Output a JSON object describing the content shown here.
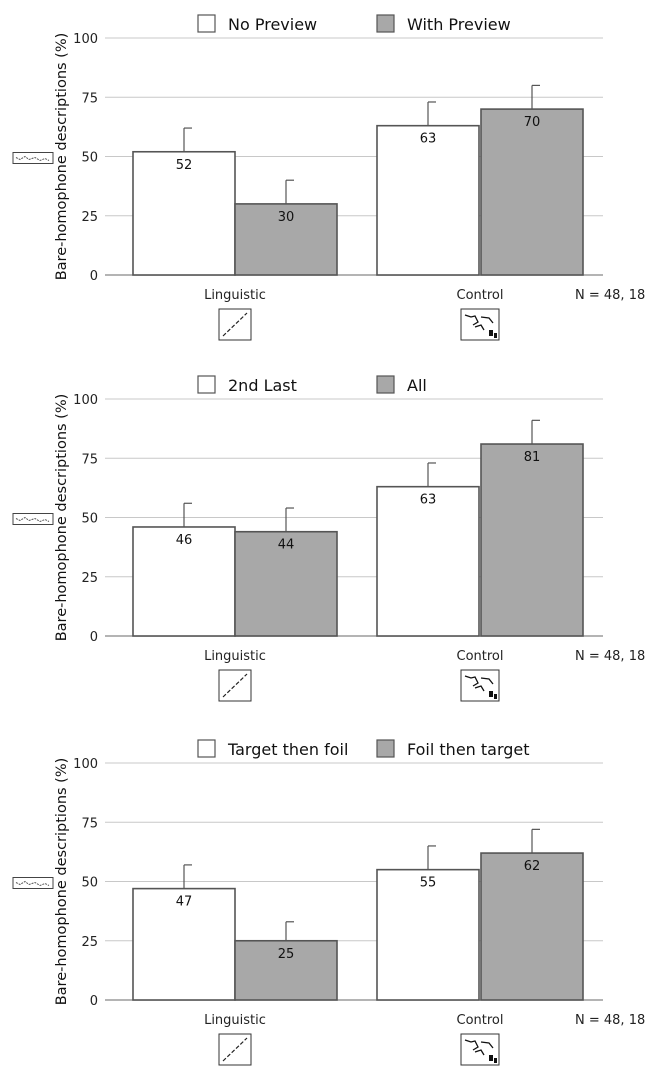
{
  "chart_data": [
    {
      "type": "bar",
      "categories": [
        "Linguistic",
        "Control"
      ],
      "series": [
        {
          "name": "No Preview",
          "values": [
            52,
            63
          ],
          "error_upper": [
            62,
            73
          ],
          "color": "#ffffff"
        },
        {
          "name": "With Preview",
          "values": [
            30,
            70
          ],
          "error_upper": [
            40,
            80
          ],
          "color": "#a8a8a8"
        }
      ],
      "ylabel": "Bare-homophone descriptions (%)",
      "yticks": [
        0,
        25,
        50,
        75,
        100
      ],
      "ylim": [
        0,
        100
      ],
      "grid": true,
      "note": "N = 48, 18",
      "legend_position": "top-center"
    },
    {
      "type": "bar",
      "categories": [
        "Linguistic",
        "Control"
      ],
      "series": [
        {
          "name": "2nd Last",
          "values": [
            46,
            63
          ],
          "error_upper": [
            56,
            73
          ],
          "color": "#ffffff"
        },
        {
          "name": "All",
          "values": [
            44,
            81
          ],
          "error_upper": [
            54,
            91
          ],
          "color": "#a8a8a8"
        }
      ],
      "ylabel": "Bare-homophone descriptions (%)",
      "yticks": [
        0,
        25,
        50,
        75,
        100
      ],
      "ylim": [
        0,
        100
      ],
      "grid": true,
      "note": "N = 48, 18",
      "legend_position": "top-center"
    },
    {
      "type": "bar",
      "categories": [
        "Linguistic",
        "Control"
      ],
      "series": [
        {
          "name": "Target then foil",
          "values": [
            47,
            55
          ],
          "error_upper": [
            57,
            65
          ],
          "color": "#ffffff"
        },
        {
          "name": "Foil then target",
          "values": [
            25,
            62
          ],
          "error_upper": [
            33,
            72
          ],
          "color": "#a8a8a8"
        }
      ],
      "ylabel": "Bare-homophone descriptions (%)",
      "yticks": [
        0,
        25,
        50,
        75,
        100
      ],
      "ylim": [
        0,
        100
      ],
      "grid": true,
      "note": "N = 48, 18",
      "legend_position": "top-center"
    }
  ],
  "colors": {
    "grid": "#c8c8c8",
    "bar_stroke": "#555555",
    "axis": "#888888"
  }
}
